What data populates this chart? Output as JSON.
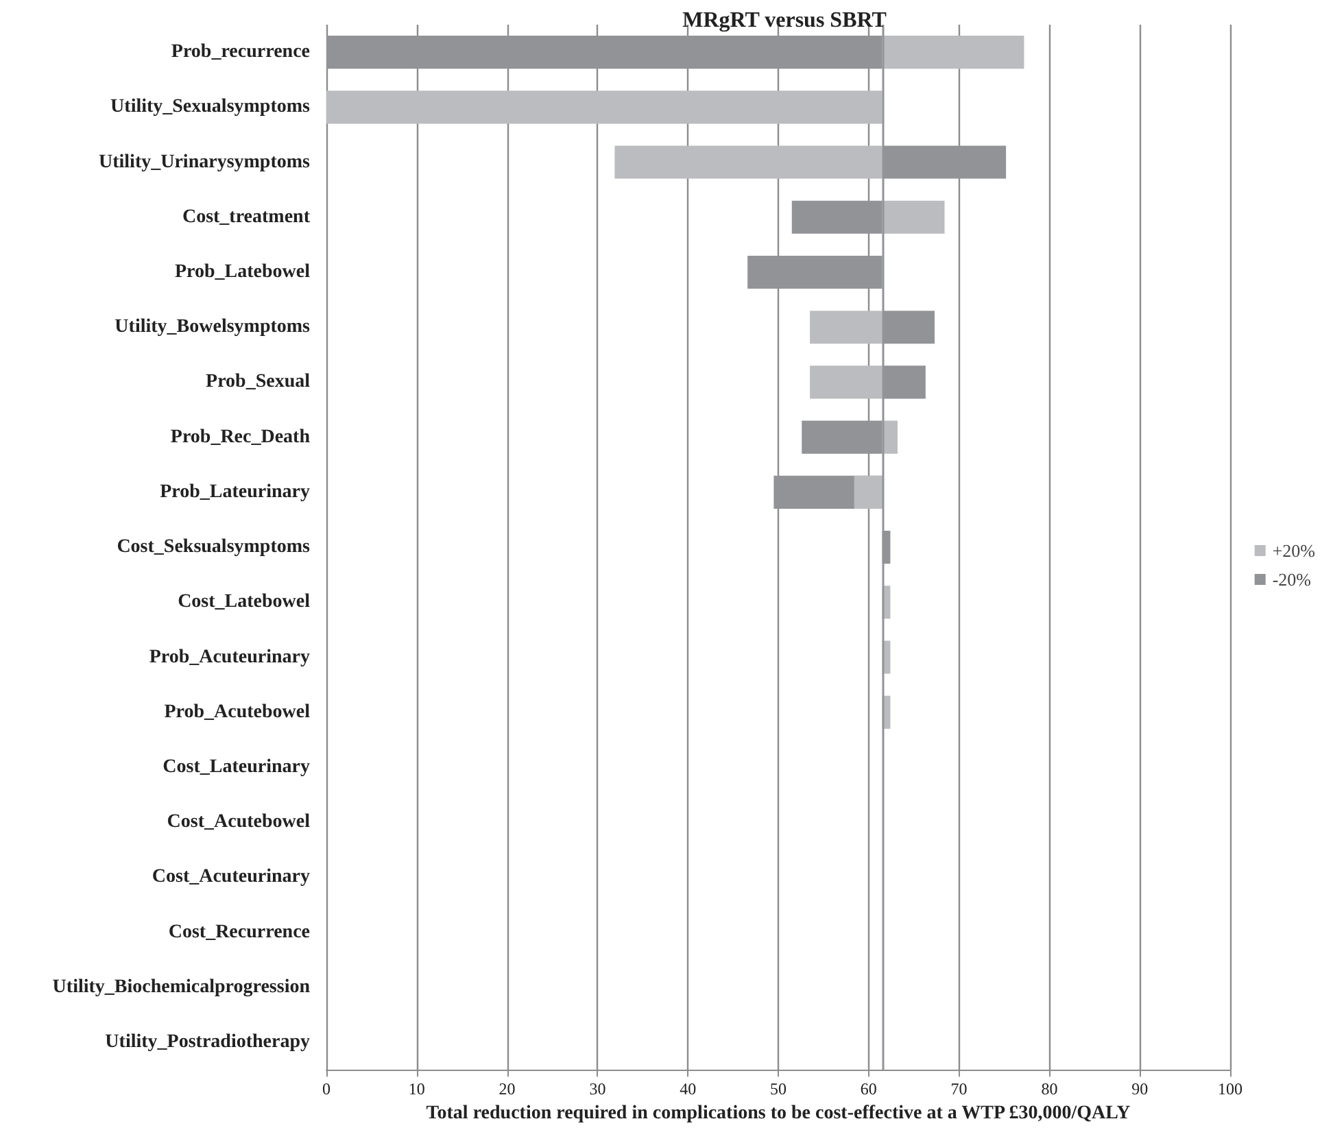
{
  "chart_data": {
    "type": "bar",
    "orientation": "horizontal",
    "title": "MRgRT versus SBRT",
    "xlabel": "Total reduction required in complications to be cost-effective at a WTP £30,000/QALY",
    "categories": [
      "Prob_recurrence",
      "Utility_Sexualsymptoms",
      "Utility_Urinarysymptoms",
      "Cost_treatment",
      "Prob_Latebowel",
      "Utility_Bowelsymptoms",
      "Prob_Sexual",
      "Prob_Rec_Death",
      "Prob_Lateurinary",
      "Cost_Seksualsymptoms",
      "Cost_Latebowel",
      "Prob_Acuteurinary",
      "Prob_Acutebowel",
      "Cost_Lateurinary",
      "Cost_Acutebowel",
      "Cost_Acuteurinary",
      "Cost_Recurrence",
      "Utility_Biochemicalprogression",
      "Utility_Postradiotherapy"
    ],
    "series": [
      {
        "name": "-20%",
        "color": "#929397",
        "base": [
          0,
          null,
          61.5,
          51.5,
          46.6,
          61.5,
          61.5,
          52.6,
          49.5,
          61.5,
          null,
          null,
          null,
          null,
          null,
          null,
          null,
          null,
          null
        ],
        "values": [
          61.5,
          null,
          13.7,
          10,
          14.9,
          5.8,
          4.8,
          8.9,
          12,
          0.9,
          null,
          null,
          null,
          null,
          null,
          null,
          null,
          null,
          null
        ]
      },
      {
        "name": "+20%",
        "color": "#bbbcbf",
        "base": [
          61.5,
          0,
          31.9,
          61.5,
          null,
          53.5,
          53.5,
          61.5,
          58.4,
          null,
          61.5,
          61.5,
          61.5,
          null,
          null,
          null,
          null,
          null,
          null
        ],
        "values": [
          15.7,
          61.5,
          29.6,
          6.9,
          null,
          8,
          8,
          1.7,
          3.1,
          null,
          0.9,
          0.9,
          0.9,
          null,
          null,
          null,
          null,
          null,
          null
        ]
      }
    ],
    "xlim": [
      0,
      100
    ],
    "xticks": [
      0,
      10,
      20,
      30,
      40,
      50,
      60,
      70,
      80,
      90,
      100
    ],
    "ref_lines": [
      {
        "axis": "x",
        "value": 61.5,
        "color": "#929397"
      }
    ],
    "grid": "x",
    "legend": "right"
  }
}
